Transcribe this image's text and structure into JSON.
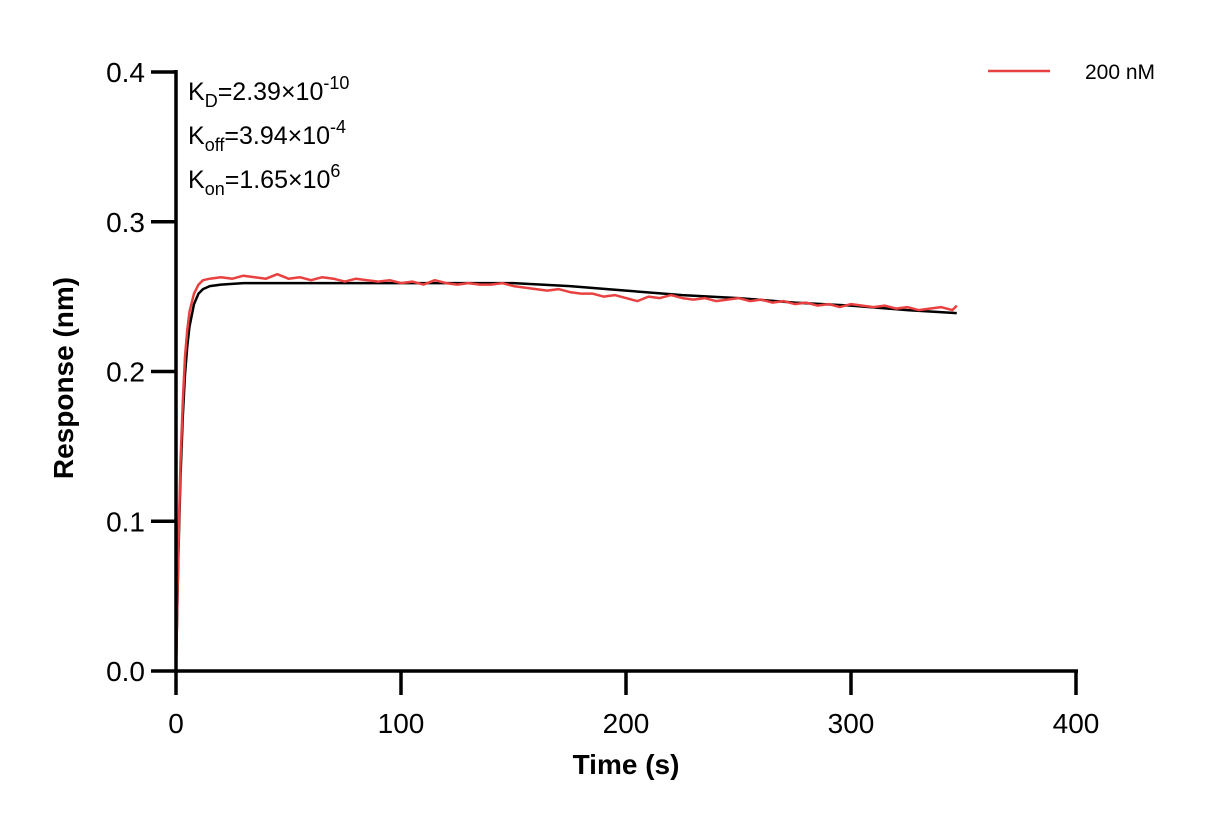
{
  "chart_data": {
    "type": "line",
    "xlabel": "Time (s)",
    "ylabel": "Response (nm)",
    "xlim": [
      0,
      400
    ],
    "ylim": [
      0,
      0.4
    ],
    "x_ticks": [
      0,
      100,
      200,
      300,
      400
    ],
    "x_tick_labels": [
      "0",
      "100",
      "200",
      "300",
      "400"
    ],
    "y_ticks": [
      0.0,
      0.1,
      0.2,
      0.3,
      0.4
    ],
    "y_tick_labels": [
      "0.0",
      "0.1",
      "0.2",
      "0.3",
      "0.4"
    ],
    "grid": false,
    "legend": {
      "position": "top-right"
    },
    "annotations": [
      {
        "base": "K",
        "sub": "D",
        "text": "=2.39×10",
        "sup": "-10"
      },
      {
        "base": "K",
        "sub": "off",
        "text": "=3.94×10",
        "sup": "-4"
      },
      {
        "base": "K",
        "sub": "on",
        "text": "=1.65×10",
        "sup": "6"
      }
    ],
    "series": [
      {
        "name": "200 nM",
        "color": "#e8413f",
        "style": "measured",
        "x": [
          0,
          1,
          2,
          3,
          4,
          5,
          6,
          8,
          10,
          12,
          15,
          20,
          25,
          30,
          35,
          40,
          45,
          50,
          55,
          60,
          65,
          70,
          75,
          80,
          85,
          90,
          95,
          100,
          105,
          110,
          115,
          120,
          125,
          130,
          135,
          140,
          145,
          150,
          155,
          160,
          165,
          170,
          175,
          180,
          185,
          190,
          195,
          200,
          205,
          210,
          215,
          220,
          225,
          230,
          235,
          240,
          245,
          250,
          255,
          260,
          265,
          270,
          275,
          280,
          285,
          290,
          295,
          300,
          305,
          310,
          315,
          320,
          325,
          330,
          335,
          340,
          345,
          347
        ],
        "y": [
          0.0,
          0.08,
          0.14,
          0.18,
          0.21,
          0.228,
          0.24,
          0.252,
          0.258,
          0.261,
          0.262,
          0.263,
          0.262,
          0.264,
          0.263,
          0.262,
          0.265,
          0.262,
          0.263,
          0.261,
          0.263,
          0.262,
          0.26,
          0.262,
          0.261,
          0.26,
          0.261,
          0.259,
          0.26,
          0.258,
          0.261,
          0.259,
          0.258,
          0.259,
          0.258,
          0.258,
          0.259,
          0.257,
          0.256,
          0.255,
          0.254,
          0.255,
          0.253,
          0.252,
          0.252,
          0.25,
          0.251,
          0.249,
          0.247,
          0.25,
          0.249,
          0.251,
          0.249,
          0.248,
          0.249,
          0.247,
          0.248,
          0.249,
          0.247,
          0.248,
          0.246,
          0.247,
          0.245,
          0.246,
          0.244,
          0.245,
          0.243,
          0.245,
          0.244,
          0.243,
          0.244,
          0.242,
          0.243,
          0.241,
          0.242,
          0.243,
          0.241,
          0.244
        ]
      },
      {
        "color": "#000000",
        "style": "fit",
        "x": [
          0,
          1,
          2,
          3,
          4,
          5,
          6,
          8,
          10,
          12,
          15,
          20,
          30,
          40,
          50,
          60,
          80,
          100,
          120,
          140,
          150,
          175,
          200,
          225,
          250,
          275,
          300,
          325,
          347
        ],
        "y": [
          0.0,
          0.075,
          0.13,
          0.17,
          0.198,
          0.217,
          0.23,
          0.245,
          0.252,
          0.255,
          0.257,
          0.258,
          0.259,
          0.259,
          0.259,
          0.259,
          0.259,
          0.259,
          0.259,
          0.259,
          0.259,
          0.257,
          0.254,
          0.251,
          0.249,
          0.246,
          0.244,
          0.241,
          0.239
        ]
      }
    ]
  }
}
